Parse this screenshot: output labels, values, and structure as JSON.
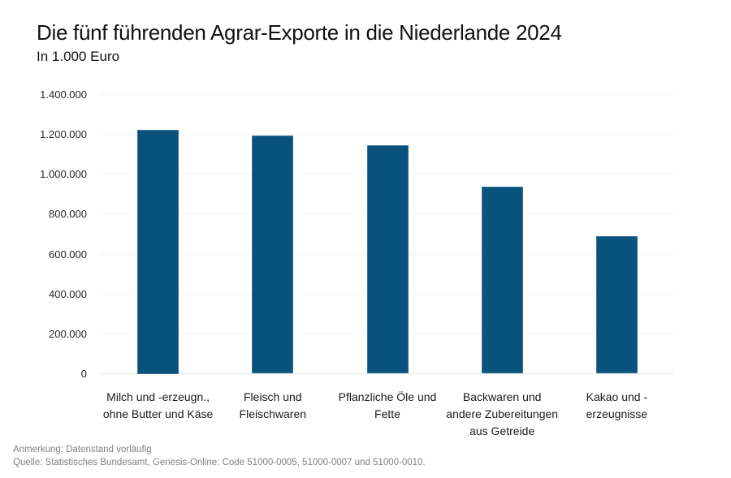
{
  "header": {
    "title": "Die fünf führenden Agrar-Exporte in die Niederlande 2024",
    "subtitle": "In 1.000 Euro"
  },
  "footer": {
    "note": "Anmerkung: Datenstand vorläufig",
    "source": "Quelle: Statistisches Bundesamt, Genesis-Online: Code 51000-0005, 51000-0007 und 51000-0010."
  },
  "chart_data": {
    "type": "bar",
    "title": "Die fünf führenden Agrar-Exporte in die Niederlande 2024",
    "subtitle": "In 1.000 Euro",
    "categories": [
      "Milch und -erzeugn., ohne Butter und Käse",
      "Fleisch und Fleischwaren",
      "Pflanzliche Öle und Fette",
      "Backwaren und andere Zubereitungen aus Getreide",
      "Kakao und - erzeugnisse"
    ],
    "category_lines": [
      [
        "Milch und -erzeugn.,",
        "ohne Butter und Käse"
      ],
      [
        "Fleisch und",
        "Fleischwaren"
      ],
      [
        "Pflanzliche Öle und",
        "Fette"
      ],
      [
        "Backwaren und",
        "andere Zubereitungen",
        "aus Getreide"
      ],
      [
        "Kakao und -",
        "erzeugnisse"
      ]
    ],
    "values": [
      1225000,
      1195000,
      1145000,
      940000,
      690000
    ],
    "xlabel": "",
    "ylabel": "",
    "ylim": [
      0,
      1400000
    ],
    "ytick_step": 200000,
    "ytick_values": [
      0,
      200000,
      400000,
      600000,
      800000,
      1000000,
      1200000,
      1400000
    ],
    "ytick_labels": [
      "0",
      "200.000",
      "400.000",
      "600.000",
      "800.000",
      "1.000.000",
      "1.200.000",
      "1.400.000"
    ],
    "grid": "horizontal-on",
    "legend_position": "none",
    "bar_color": "#09527D"
  }
}
